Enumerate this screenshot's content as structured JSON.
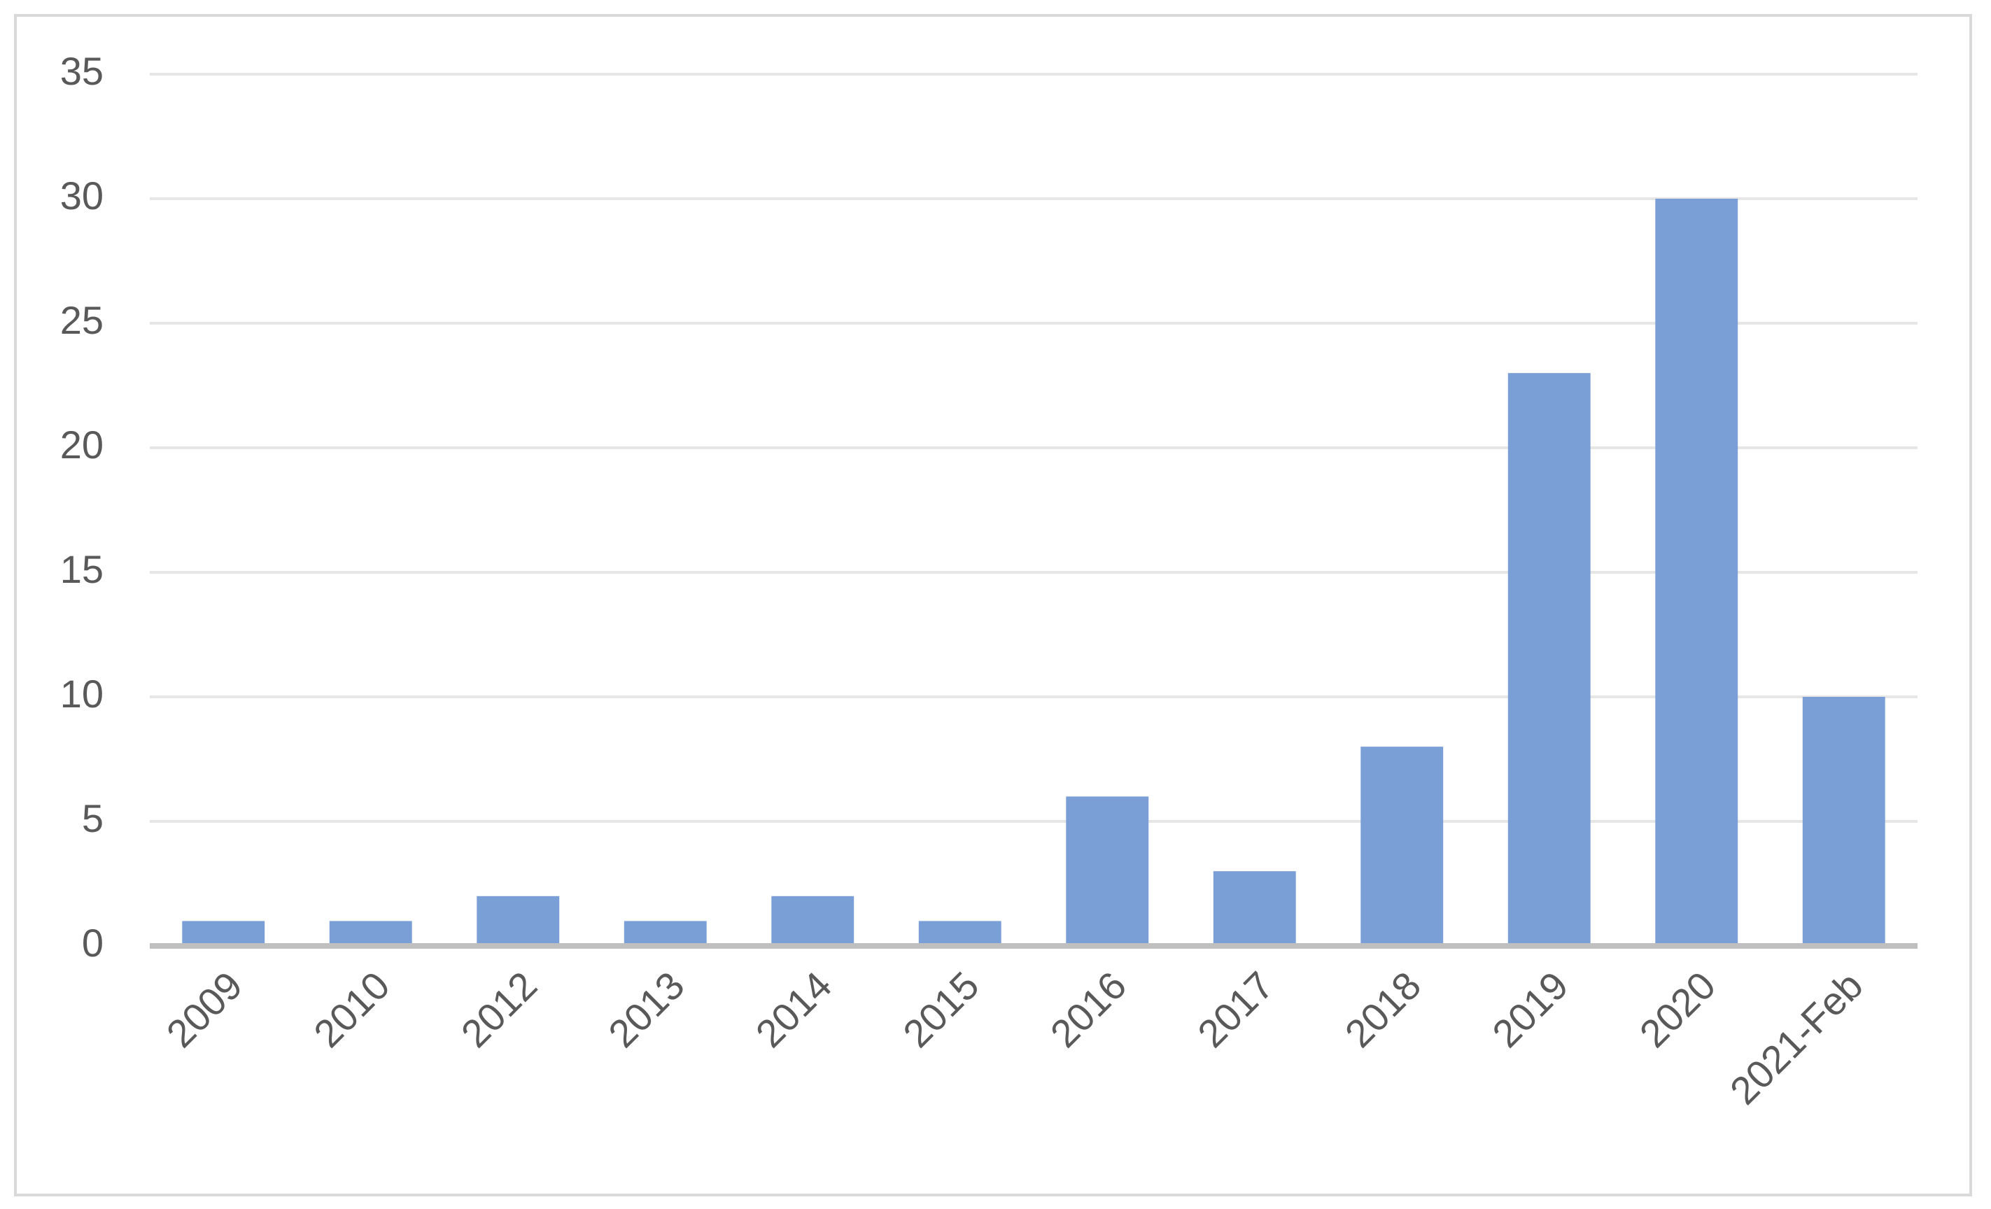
{
  "chart_data": {
    "type": "bar",
    "categories": [
      "2009",
      "2010",
      "2012",
      "2013",
      "2014",
      "2015",
      "2016",
      "2017",
      "2018",
      "2019",
      "2020",
      "2021-Feb"
    ],
    "values": [
      1,
      1,
      2,
      1,
      2,
      1,
      6,
      3,
      8,
      23,
      30,
      10
    ],
    "color": "#7a9fd6",
    "ylim": [
      0,
      35
    ],
    "yticks": [
      0,
      5,
      10,
      15,
      20,
      25,
      30,
      35
    ],
    "grid": true
  }
}
